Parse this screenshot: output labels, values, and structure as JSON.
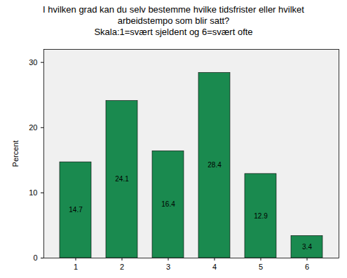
{
  "chart_data": {
    "type": "bar",
    "title": "I hvilken grad kan du selv bestemme hvilke tidsfrister eller hvilket arbeidstempo som blir satt?",
    "subtitle": "Skala:1=svært sjeldent og 6=svært ofte",
    "y_label": "Percent",
    "categories": [
      "1",
      "2",
      "3",
      "4",
      "5",
      "6"
    ],
    "values": [
      14.7,
      24.1,
      16.4,
      28.4,
      12.9,
      3.4
    ],
    "color": "#1a8a4f",
    "ylim": [
      0,
      32
    ],
    "yticks": [
      0,
      10,
      20,
      30
    ],
    "grid": false,
    "data_labels": true
  }
}
